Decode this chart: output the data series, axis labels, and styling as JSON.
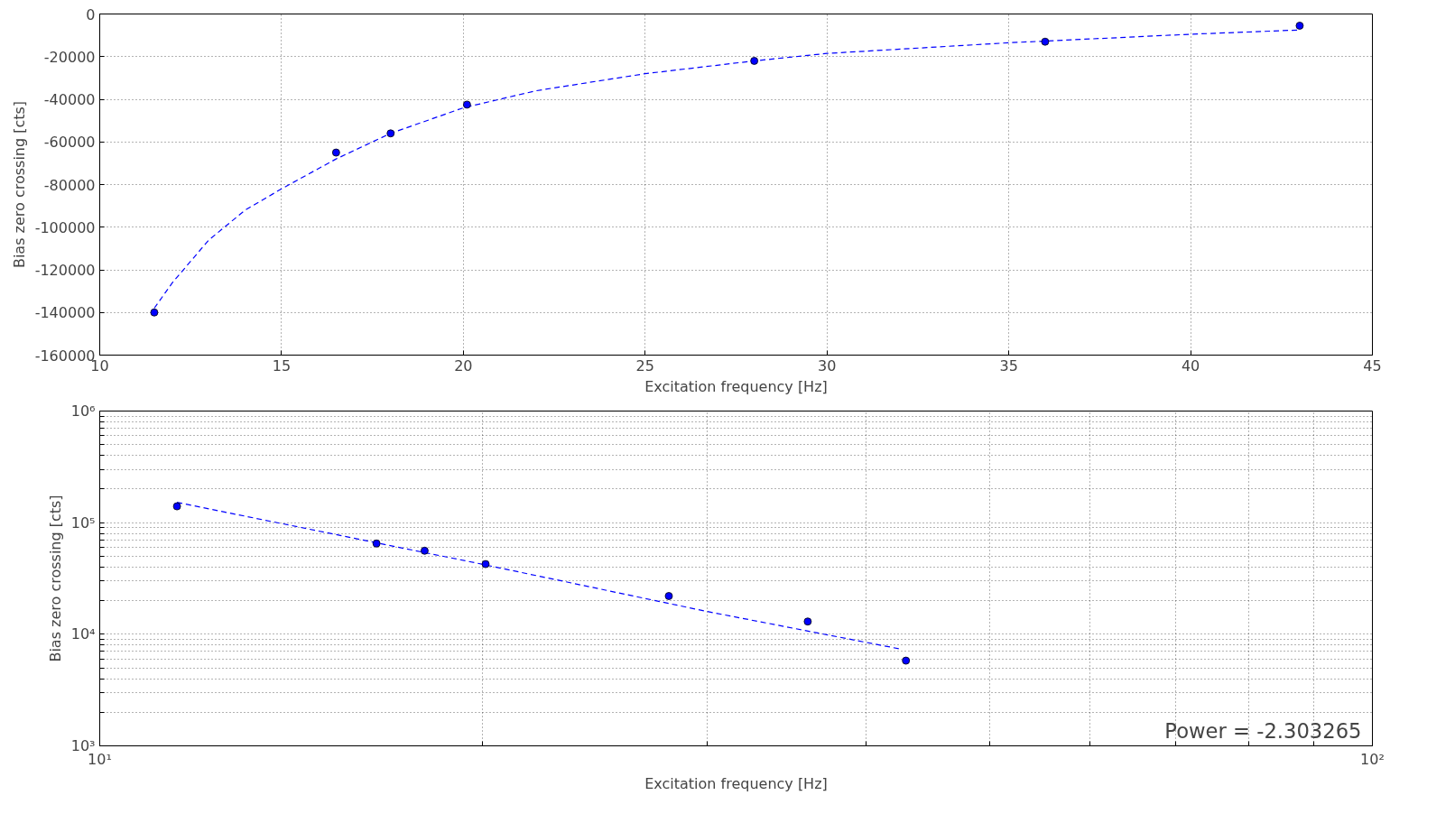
{
  "chart_data": [
    {
      "type": "scatter",
      "xlabel": "Excitation frequency [Hz]",
      "ylabel": "Bias zero crossing [cts]",
      "xlim": [
        10,
        45
      ],
      "ylim": [
        -160000,
        0
      ],
      "xticks": [
        10,
        15,
        20,
        25,
        30,
        35,
        40,
        45
      ],
      "yticks": [
        -160000,
        -140000,
        -120000,
        -100000,
        -80000,
        -60000,
        -40000,
        -20000,
        0
      ],
      "grid": true,
      "marker": "circle",
      "series": [
        {
          "type": "line",
          "color": "#0000ff",
          "line_style": "dashed",
          "marker": "none",
          "x": [
            11.5,
            12,
            13,
            14,
            15,
            16.5,
            18,
            20,
            22,
            25,
            28,
            30,
            35,
            40,
            43
          ],
          "values": [
            -138000,
            -126000,
            -106000,
            -92000,
            -82000,
            -68000,
            -56000,
            -44000,
            -36000,
            -28000,
            -22000,
            -18500,
            -13500,
            -9500,
            -7500
          ]
        },
        {
          "color": "#0000ff",
          "x": [
            11.5,
            16.5,
            18,
            20.1,
            28,
            36,
            43
          ],
          "values": [
            -140000,
            -65000,
            -56000,
            -42500,
            -22000,
            -13000,
            -5500
          ]
        }
      ]
    },
    {
      "type": "scatter",
      "xlabel": "Excitation frequency [Hz]",
      "ylabel": "Bias zero crossing [cts]",
      "log": "xy",
      "xlim": [
        10,
        100
      ],
      "ylim": [
        1000,
        1000000
      ],
      "xticks": [
        {
          "value": 10,
          "label": "10¹"
        },
        {
          "value": 20,
          "label": null
        },
        {
          "value": 30,
          "label": null
        },
        {
          "value": 40,
          "label": null
        },
        {
          "value": 50,
          "label": null
        },
        {
          "value": 60,
          "label": null
        },
        {
          "value": 70,
          "label": null
        },
        {
          "value": 80,
          "label": null
        },
        {
          "value": 90,
          "label": null
        },
        {
          "value": 100,
          "label": "10²"
        }
      ],
      "yticks": [
        {
          "value": 1000,
          "label": "10³"
        },
        {
          "value": 2000,
          "label": null
        },
        {
          "value": 3000,
          "label": null
        },
        {
          "value": 4000,
          "label": null
        },
        {
          "value": 5000,
          "label": null
        },
        {
          "value": 6000,
          "label": null
        },
        {
          "value": 7000,
          "label": null
        },
        {
          "value": 8000,
          "label": null
        },
        {
          "value": 9000,
          "label": null
        },
        {
          "value": 10000,
          "label": "10⁴"
        },
        {
          "value": 20000,
          "label": null
        },
        {
          "value": 30000,
          "label": null
        },
        {
          "value": 40000,
          "label": null
        },
        {
          "value": 50000,
          "label": null
        },
        {
          "value": 60000,
          "label": null
        },
        {
          "value": 70000,
          "label": null
        },
        {
          "value": 80000,
          "label": null
        },
        {
          "value": 90000,
          "label": null
        },
        {
          "value": 100000,
          "label": "10⁵"
        },
        {
          "value": 200000,
          "label": null
        },
        {
          "value": 300000,
          "label": null
        },
        {
          "value": 400000,
          "label": null
        },
        {
          "value": 500000,
          "label": null
        },
        {
          "value": 600000,
          "label": null
        },
        {
          "value": 700000,
          "label": null
        },
        {
          "value": 800000,
          "label": null
        },
        {
          "value": 900000,
          "label": null
        },
        {
          "value": 1000000,
          "label": "10⁶"
        }
      ],
      "grid": true,
      "marker": "circle",
      "annotations": [
        "Power = -2.303265"
      ],
      "series": [
        {
          "type": "line",
          "color": "#0000ff",
          "line_style": "dashed",
          "marker": "none",
          "x": [
            11.5,
            20,
            30,
            42.5
          ],
          "values": [
            152000,
            42300,
            16000,
            7400
          ]
        },
        {
          "color": "#0000ff",
          "x": [
            11.5,
            16.5,
            18,
            20.1,
            28,
            36,
            43
          ],
          "values": [
            140000,
            65000,
            56000,
            42500,
            22000,
            13000,
            5800
          ]
        }
      ]
    }
  ]
}
